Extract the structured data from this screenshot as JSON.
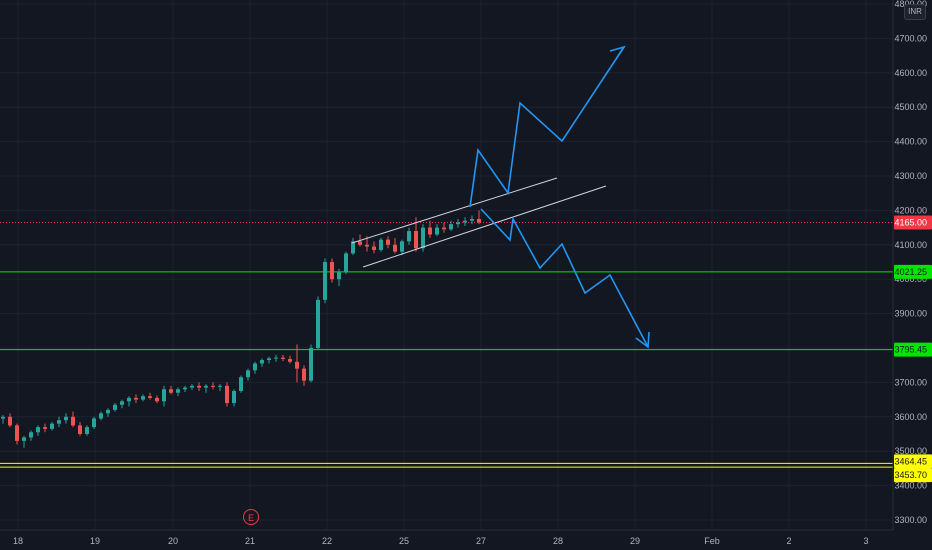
{
  "header": {
    "currency": "INR",
    "earnings_marker": "E"
  },
  "colors": {
    "background": "#131722",
    "grid": "#1e222d",
    "up": "#26a69a",
    "down": "#ef5350",
    "projection": "#2196f3",
    "support_green": "#00e600",
    "support_yellow": "#ffff00",
    "current_price_bg": "#f23645",
    "channel": "#d1d4dc"
  },
  "chart_data": {
    "type": "candlestick",
    "x_axis_labels": [
      "18",
      "19",
      "20",
      "21",
      "22",
      "25",
      "26",
      "27",
      "28",
      "29",
      "Feb",
      "2",
      "3"
    ],
    "y_axis_labels": [
      "4800.00",
      "4700.00",
      "4600.00",
      "4500.00",
      "4400.00",
      "4300.00",
      "4200.00",
      "4100.00",
      "4000.00",
      "3900.00",
      "3800.00",
      "3700.00",
      "3600.00",
      "3500.00",
      "3400.00",
      "3300.00"
    ],
    "ylim": [
      3290,
      4800
    ],
    "grid": true,
    "price_labels": [
      {
        "label": "4165.00",
        "value": 4165,
        "kind": "current"
      },
      {
        "label": "4021.25",
        "value": 4021.25,
        "kind": "green"
      },
      {
        "label": "3795.45",
        "value": 3795.45,
        "kind": "green"
      },
      {
        "label": "3464.45",
        "value": 3464.45,
        "kind": "yellow"
      },
      {
        "label": "3453.70",
        "value": 3453.7,
        "kind": "yellow"
      }
    ],
    "candles": [
      [
        3595,
        3605,
        3580,
        3600
      ],
      [
        3600,
        3610,
        3570,
        3575
      ],
      [
        3575,
        3580,
        3520,
        3530
      ],
      [
        3530,
        3545,
        3510,
        3540
      ],
      [
        3540,
        3560,
        3530,
        3555
      ],
      [
        3555,
        3575,
        3545,
        3570
      ],
      [
        3570,
        3580,
        3555,
        3565
      ],
      [
        3565,
        3585,
        3560,
        3580
      ],
      [
        3580,
        3600,
        3570,
        3590
      ],
      [
        3590,
        3610,
        3580,
        3600
      ],
      [
        3600,
        3615,
        3570,
        3575
      ],
      [
        3575,
        3585,
        3545,
        3550
      ],
      [
        3550,
        3575,
        3545,
        3570
      ],
      [
        3570,
        3600,
        3565,
        3595
      ],
      [
        3595,
        3615,
        3590,
        3610
      ],
      [
        3610,
        3625,
        3600,
        3620
      ],
      [
        3620,
        3640,
        3615,
        3635
      ],
      [
        3635,
        3650,
        3625,
        3645
      ],
      [
        3645,
        3660,
        3630,
        3655
      ],
      [
        3655,
        3665,
        3640,
        3650
      ],
      [
        3650,
        3665,
        3645,
        3660
      ],
      [
        3660,
        3670,
        3650,
        3655
      ],
      [
        3655,
        3662,
        3640,
        3645
      ],
      [
        3645,
        3690,
        3630,
        3680
      ],
      [
        3680,
        3690,
        3665,
        3670
      ],
      [
        3670,
        3685,
        3660,
        3680
      ],
      [
        3680,
        3690,
        3672,
        3685
      ],
      [
        3685,
        3695,
        3678,
        3690
      ],
      [
        3690,
        3700,
        3675,
        3685
      ],
      [
        3685,
        3695,
        3670,
        3690
      ],
      [
        3690,
        3700,
        3680,
        3688
      ],
      [
        3688,
        3695,
        3675,
        3690
      ],
      [
        3690,
        3700,
        3630,
        3640
      ],
      [
        3640,
        3680,
        3630,
        3675
      ],
      [
        3675,
        3720,
        3670,
        3715
      ],
      [
        3715,
        3740,
        3705,
        3735
      ],
      [
        3735,
        3760,
        3725,
        3755
      ],
      [
        3755,
        3770,
        3745,
        3765
      ],
      [
        3765,
        3775,
        3755,
        3770
      ],
      [
        3770,
        3780,
        3760,
        3772
      ],
      [
        3772,
        3780,
        3762,
        3768
      ],
      [
        3768,
        3778,
        3755,
        3760
      ],
      [
        3760,
        3810,
        3700,
        3740
      ],
      [
        3740,
        3750,
        3690,
        3705
      ],
      [
        3705,
        3810,
        3700,
        3800
      ],
      [
        3800,
        3950,
        3795,
        3940
      ],
      [
        3940,
        4060,
        3930,
        4050
      ],
      [
        4050,
        4060,
        3990,
        4000
      ],
      [
        4000,
        4030,
        3980,
        4020
      ],
      [
        4020,
        4080,
        4015,
        4075
      ],
      [
        4075,
        4120,
        4070,
        4110
      ],
      [
        4110,
        4130,
        4095,
        4100
      ],
      [
        4100,
        4125,
        4080,
        4095
      ],
      [
        4095,
        4110,
        4075,
        4085
      ],
      [
        4085,
        4120,
        4080,
        4115
      ],
      [
        4115,
        4125,
        4090,
        4100
      ],
      [
        4100,
        4120,
        4075,
        4080
      ],
      [
        4080,
        4115,
        4070,
        4110
      ],
      [
        4110,
        4150,
        4100,
        4140
      ],
      [
        4140,
        4180,
        4080,
        4090
      ],
      [
        4090,
        4160,
        4080,
        4150
      ],
      [
        4150,
        4170,
        4120,
        4130
      ],
      [
        4130,
        4160,
        4125,
        4150
      ],
      [
        4150,
        4165,
        4135,
        4145
      ],
      [
        4145,
        4170,
        4140,
        4160
      ],
      [
        4160,
        4175,
        4150,
        4165
      ],
      [
        4165,
        4180,
        4155,
        4170
      ],
      [
        4170,
        4185,
        4160,
        4175
      ],
      [
        4175,
        4200,
        4160,
        4165
      ]
    ]
  }
}
